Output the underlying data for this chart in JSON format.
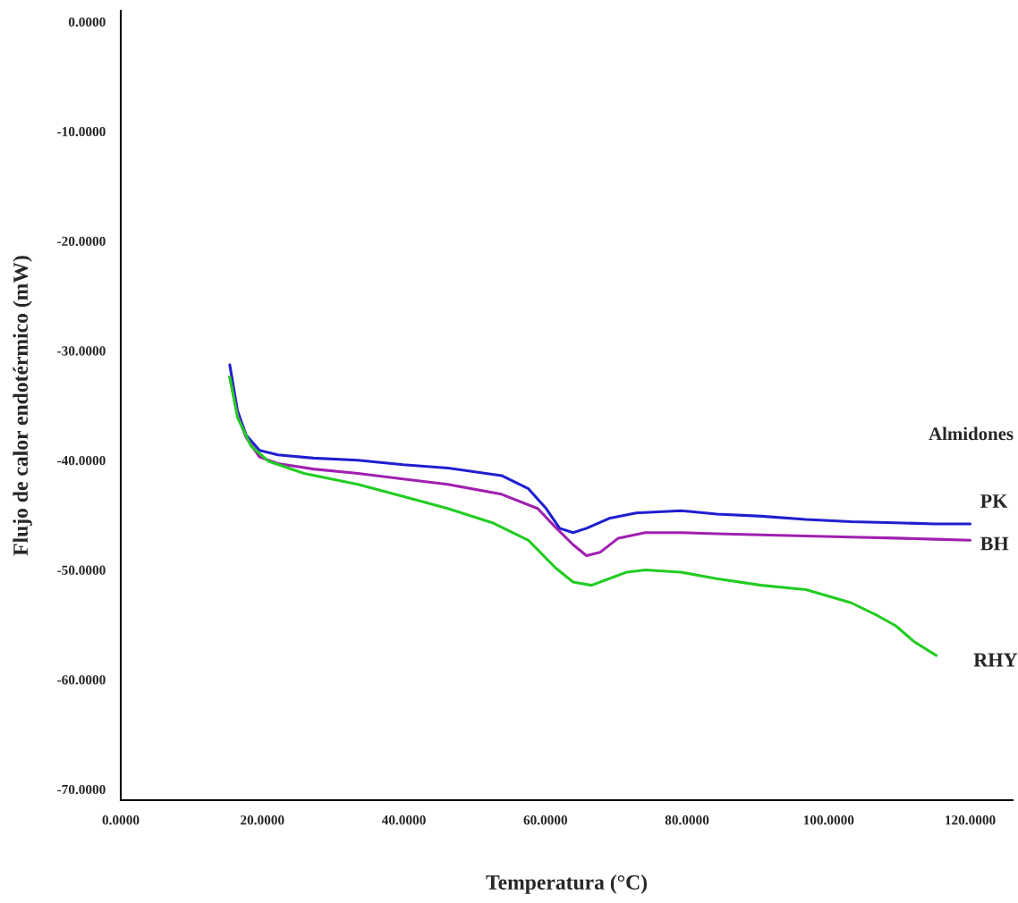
{
  "chart_data": {
    "type": "line",
    "xlabel": "Temperatura (°C)",
    "ylabel": "Flujo de calor endotérmico (mW)",
    "annotations": [
      "Almidones"
    ],
    "xlim": [
      0,
      126
    ],
    "ylim": [
      -71,
      1
    ],
    "xticks": [
      {
        "value": 0,
        "label": "0.0000"
      },
      {
        "value": 20,
        "label": "20.0000"
      },
      {
        "value": 40,
        "label": "40.0000"
      },
      {
        "value": 60,
        "label": "60.0000"
      },
      {
        "value": 80,
        "label": "80.0000"
      },
      {
        "value": 100,
        "label": "100.0000"
      },
      {
        "value": 120,
        "label": "120.0000"
      }
    ],
    "yticks": [
      {
        "value": 0,
        "label": "0.0000"
      },
      {
        "value": -10,
        "label": "-10.0000"
      },
      {
        "value": -20,
        "label": "-20.0000"
      },
      {
        "value": -30,
        "label": "-30.0000"
      },
      {
        "value": -40,
        "label": "-40.0000"
      },
      {
        "value": -50,
        "label": "-50.0000"
      },
      {
        "value": -60,
        "label": "-60.0000"
      },
      {
        "value": -70,
        "label": "-70.0000"
      }
    ],
    "grid": false,
    "legend": false,
    "marker": "none",
    "line_style": "solid",
    "series": [
      {
        "name": "PK",
        "color": "#1f1fd0",
        "x": [
          15.4,
          16.5,
          17.7,
          19.6,
          22.2,
          27.2,
          33.5,
          39.9,
          46.2,
          53.8,
          57.6,
          60.1,
          62.0,
          63.9,
          65.8,
          69.0,
          72.8,
          79.1,
          84.2,
          90.5,
          96.8,
          103.2,
          109.5,
          115.0,
          120.0
        ],
        "values": [
          -31.3,
          -35.5,
          -37.7,
          -39.1,
          -39.5,
          -39.8,
          -40.0,
          -40.4,
          -40.7,
          -41.4,
          -42.6,
          -44.4,
          -46.2,
          -46.6,
          -46.2,
          -45.3,
          -44.8,
          -44.6,
          -44.9,
          -45.1,
          -45.4,
          -45.6,
          -45.7,
          -45.8,
          -45.8
        ]
      },
      {
        "name": "BH",
        "color": "#a020b0",
        "x": [
          15.4,
          16.5,
          17.7,
          19.6,
          22.2,
          27.2,
          33.5,
          39.9,
          46.2,
          53.8,
          58.9,
          61.4,
          63.9,
          65.8,
          67.7,
          70.3,
          74.1,
          79.1,
          84.2,
          90.5,
          96.8,
          103.2,
          109.5,
          115.0,
          120.0
        ],
        "values": [
          -32.4,
          -35.9,
          -37.9,
          -39.7,
          -40.3,
          -40.8,
          -41.2,
          -41.7,
          -42.2,
          -43.1,
          -44.4,
          -46.1,
          -47.7,
          -48.7,
          -48.4,
          -47.1,
          -46.6,
          -46.6,
          -46.7,
          -46.8,
          -46.9,
          -47.0,
          -47.1,
          -47.2,
          -47.3
        ]
      },
      {
        "name": "RHY",
        "color": "#22cc22",
        "x": [
          15.4,
          16.5,
          18.4,
          20.9,
          25.9,
          33.5,
          39.9,
          46.2,
          52.5,
          57.6,
          61.4,
          63.9,
          66.5,
          69.0,
          71.5,
          74.1,
          79.1,
          84.2,
          90.5,
          96.8,
          103.2,
          107.0,
          109.5,
          112.0,
          115.2
        ],
        "values": [
          -32.4,
          -36.1,
          -38.7,
          -40.1,
          -41.2,
          -42.2,
          -43.3,
          -44.4,
          -45.7,
          -47.3,
          -49.8,
          -51.1,
          -51.4,
          -50.8,
          -50.2,
          -50.0,
          -50.2,
          -50.8,
          -51.4,
          -51.8,
          -53.0,
          -54.2,
          -55.1,
          -56.5,
          -57.8
        ]
      }
    ]
  }
}
